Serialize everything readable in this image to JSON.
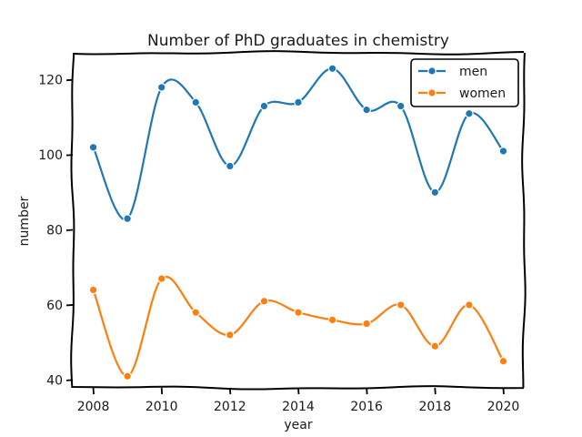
{
  "chart_data": {
    "type": "line",
    "title": "Number of PhD graduates in chemistry",
    "xlabel": "year",
    "ylabel": "number",
    "x": [
      2008,
      2009,
      2010,
      2011,
      2012,
      2013,
      2014,
      2015,
      2016,
      2017,
      2018,
      2019,
      2020
    ],
    "series": [
      {
        "name": "men",
        "color": "#1f77b4",
        "values": [
          102,
          83,
          118,
          114,
          97,
          113,
          114,
          123,
          112,
          113,
          90,
          111,
          101
        ]
      },
      {
        "name": "women",
        "color": "#ff7f0e",
        "values": [
          64,
          41,
          67,
          58,
          52,
          61,
          58,
          56,
          55,
          60,
          49,
          60,
          45
        ]
      }
    ],
    "xticks": [
      "2008",
      "2010",
      "2012",
      "2014",
      "2016",
      "2018",
      "2020"
    ],
    "yticks": [
      "40",
      "60",
      "80",
      "100",
      "120"
    ],
    "xlim": [
      2007.4,
      2020.6
    ],
    "ylim": [
      37.9,
      127.2
    ],
    "grid": false,
    "legend_position": "top-right",
    "style": "xkcd"
  }
}
